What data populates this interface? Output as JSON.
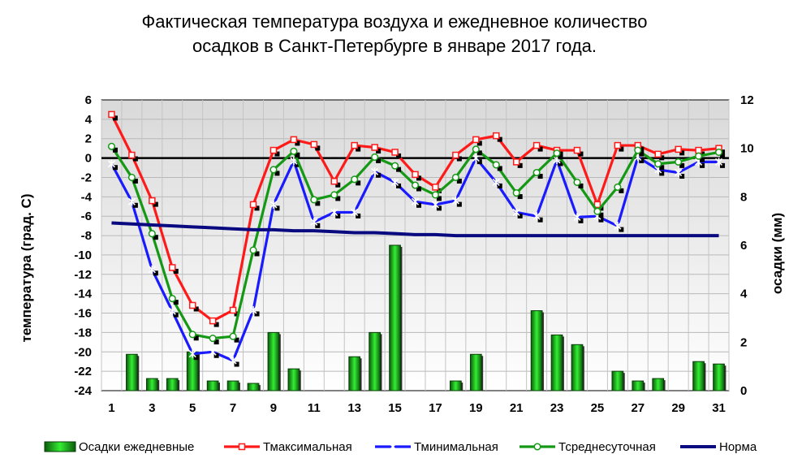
{
  "title_line1": "Фактическая температура воздуха и ежедневное количество",
  "title_line2": "осадков в Санкт-Петербурге в январе 2017 года.",
  "chart_data": {
    "type": "bar+line",
    "title": "Фактическая температура воздуха и ежедневное количество осадков в Санкт-Петербурге в январе 2017 года.",
    "ylabel_left": "температура (град. С)",
    "ylabel_right": "осадки (мм)",
    "ylim_left": [
      -24,
      6
    ],
    "ylim_right": [
      0,
      12
    ],
    "x": [
      1,
      2,
      3,
      4,
      5,
      6,
      7,
      8,
      9,
      10,
      11,
      12,
      13,
      14,
      15,
      16,
      17,
      18,
      19,
      20,
      21,
      22,
      23,
      24,
      25,
      26,
      27,
      28,
      29,
      30,
      31
    ],
    "x_ticks": [
      "1",
      "3",
      "5",
      "7",
      "9",
      "11",
      "13",
      "15",
      "17",
      "19",
      "21",
      "23",
      "25",
      "27",
      "29",
      "31"
    ],
    "y_ticks_left": [
      "6",
      "4",
      "2",
      "0",
      "-2",
      "-4",
      "-6",
      "-8",
      "-10",
      "-12",
      "-14",
      "-16",
      "-18",
      "-20",
      "-22",
      "-24"
    ],
    "y_ticks_right": [
      "12",
      "10",
      "8",
      "6",
      "4",
      "2",
      "0"
    ],
    "grid": true,
    "legend_position": "bottom",
    "series": [
      {
        "name": "Осадки ежедневные",
        "kind": "bar",
        "axis": "right",
        "color": "#22cc22",
        "values": [
          0,
          1.5,
          0.5,
          0.5,
          1.6,
          0.4,
          0.4,
          0.3,
          2.4,
          0.9,
          0,
          0,
          1.4,
          2.4,
          6,
          0,
          0,
          0.4,
          1.5,
          0,
          0,
          3.3,
          2.3,
          1.9,
          0,
          0.8,
          0.4,
          0.5,
          0,
          1.2,
          1.1
        ]
      },
      {
        "name": "Тмаксимальная",
        "kind": "line",
        "axis": "left",
        "color": "#ff1a1a",
        "values": [
          4.5,
          0.3,
          -4.4,
          -11.3,
          -15.2,
          -16.8,
          -15.7,
          -4.8,
          0.8,
          1.9,
          1.4,
          -2.4,
          1.3,
          1.1,
          0.6,
          -1.7,
          -3.0,
          0.3,
          1.9,
          2.3,
          -0.4,
          1.3,
          0.8,
          0.8,
          -4.8,
          1.3,
          1.3,
          0.4,
          0.9,
          0.8,
          1.0
        ]
      },
      {
        "name": "Тминимальная",
        "kind": "line",
        "axis": "left",
        "color": "#1a1aff",
        "values": [
          -0.6,
          -4.5,
          -11.5,
          -15.8,
          -20.2,
          -20.0,
          -20.9,
          -15.7,
          -4.8,
          -0.3,
          -6.6,
          -5.6,
          -5.6,
          -1.4,
          -2.5,
          -4.5,
          -4.8,
          -4.4,
          0.0,
          -2.5,
          -5.6,
          -6.0,
          -0.2,
          -6.1,
          -6.0,
          -7.0,
          0.1,
          -1.2,
          -1.5,
          -0.4,
          -0.4
        ]
      },
      {
        "name": "Тсреднесуточная",
        "kind": "line",
        "axis": "left",
        "color": "#159915",
        "values": [
          1.2,
          -2.0,
          -7.8,
          -14.5,
          -18.2,
          -18.6,
          -18.4,
          -9.5,
          -1.2,
          0.7,
          -4.3,
          -3.8,
          -2.2,
          0.1,
          -0.8,
          -2.8,
          -3.8,
          -2.0,
          0.9,
          -0.7,
          -3.6,
          -1.5,
          0.5,
          -2.5,
          -5.5,
          -3.0,
          0.8,
          -0.6,
          -0.4,
          0.2,
          0.6
        ]
      },
      {
        "name": "Норма",
        "kind": "line",
        "axis": "left",
        "color": "#0a0a80",
        "values": [
          -6.7,
          -6.8,
          -6.9,
          -7.0,
          -7.1,
          -7.2,
          -7.3,
          -7.4,
          -7.4,
          -7.5,
          -7.5,
          -7.6,
          -7.7,
          -7.7,
          -7.8,
          -7.9,
          -7.9,
          -8.0,
          -8.0,
          -8.0,
          -8.0,
          -8.0,
          -8.0,
          -8.0,
          -8.0,
          -8.0,
          -8.0,
          -8.0,
          -8.0,
          -8.0,
          -8.0
        ]
      }
    ]
  }
}
